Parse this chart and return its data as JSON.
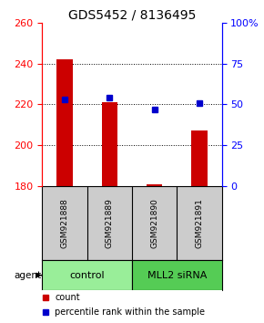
{
  "title": "GDS5452 / 8136495",
  "samples": [
    "GSM921888",
    "GSM921889",
    "GSM921890",
    "GSM921891"
  ],
  "counts": [
    242,
    221,
    181,
    207
  ],
  "percentiles": [
    53,
    54,
    47,
    51
  ],
  "ylim_left": [
    180,
    260
  ],
  "ylim_right": [
    0,
    100
  ],
  "yticks_left": [
    180,
    200,
    220,
    240,
    260
  ],
  "yticks_right": [
    0,
    25,
    50,
    75,
    100
  ],
  "bar_color": "#cc0000",
  "dot_color": "#0000cc",
  "groups": [
    {
      "label": "control",
      "samples": [
        0,
        1
      ],
      "color": "#99ee99"
    },
    {
      "label": "MLL2 siRNA",
      "samples": [
        2,
        3
      ],
      "color": "#55cc55"
    }
  ],
  "group_label_prefix": "agent",
  "legend_count_label": "count",
  "legend_pct_label": "percentile rank within the sample",
  "title_fontsize": 10,
  "tick_fontsize": 8,
  "bar_width": 0.35,
  "background_color": "#ffffff",
  "plot_bg_color": "#ffffff",
  "sample_area_color": "#cccccc"
}
